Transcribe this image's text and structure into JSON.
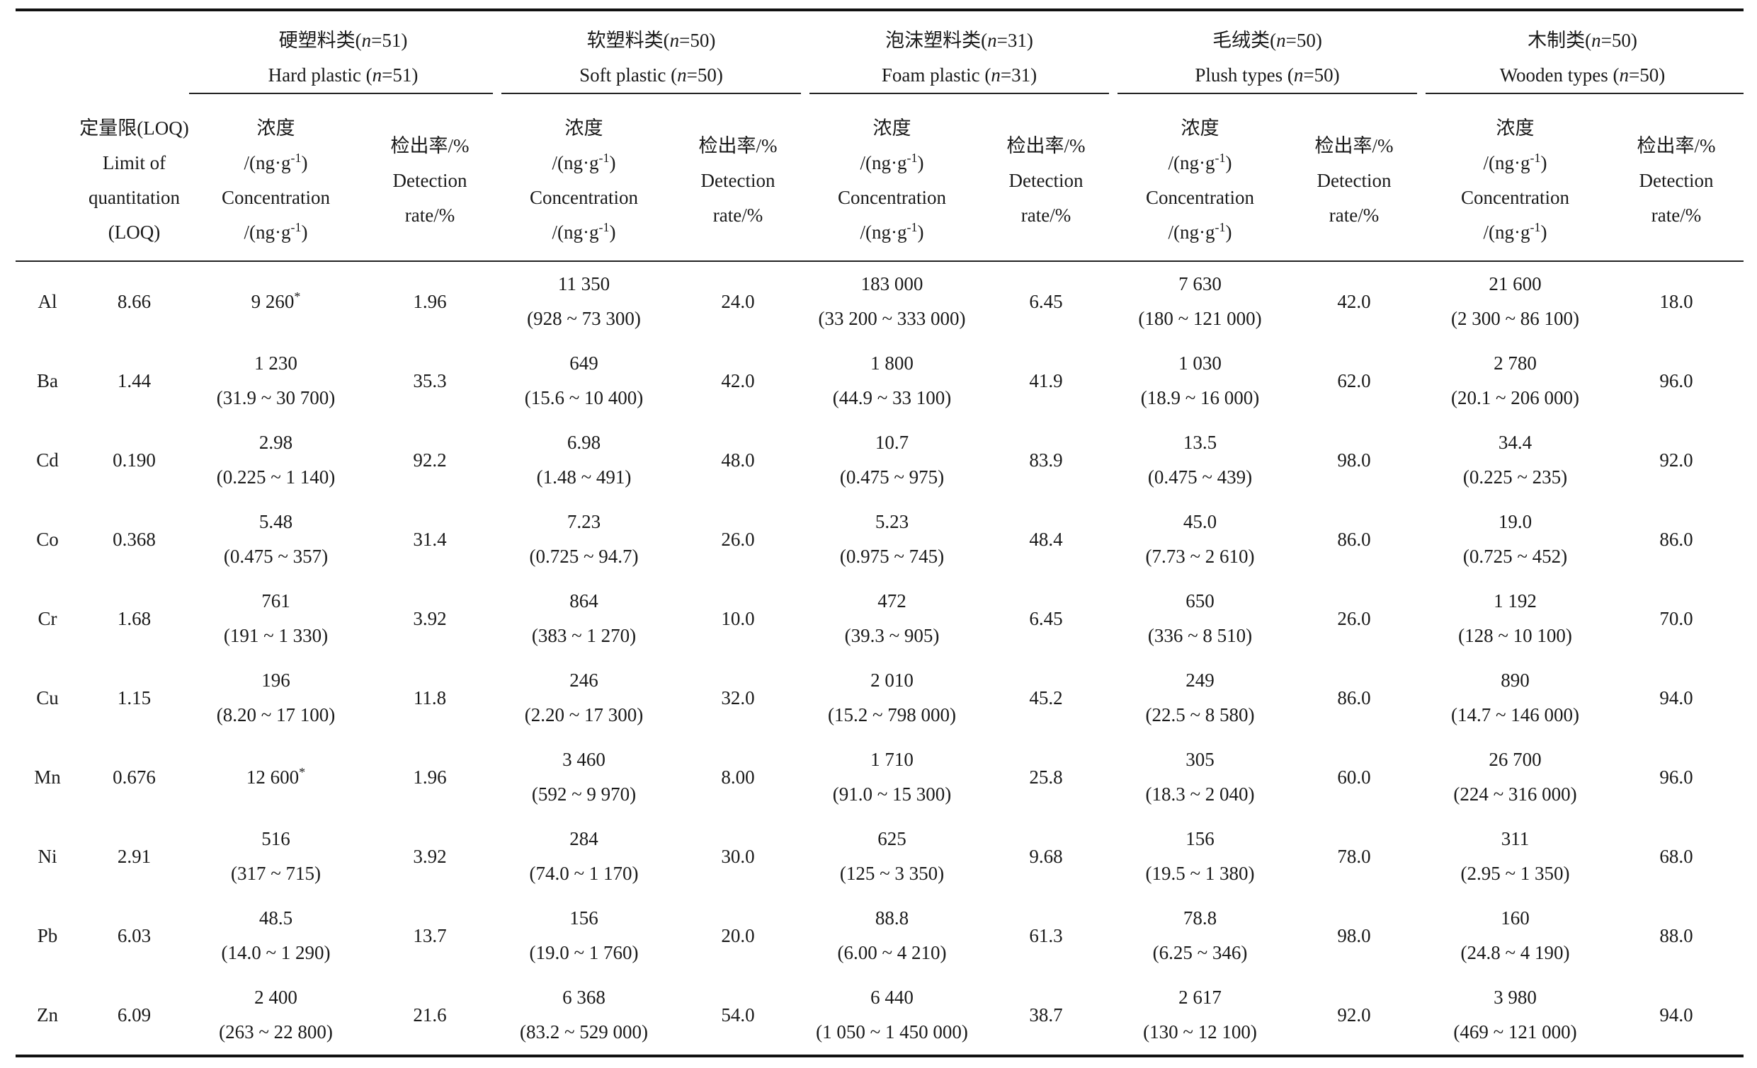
{
  "header": {
    "loq_cn": "定量限(LOQ)",
    "loq_en1": "Limit of",
    "loq_en2": "quantitation",
    "loq_en3": "(LOQ)",
    "conc_cn": "浓度",
    "conc_unit": "/(ng·g",
    "conc_unit_sup": "-1",
    "conc_unit_end": ")",
    "conc_en": "Concentration",
    "rate_cn": "检出率/%",
    "rate_en1": "Detection",
    "rate_en2": "rate/%"
  },
  "groups": [
    {
      "cn": "硬塑料类(",
      "en": "Hard plastic (",
      "n": "51"
    },
    {
      "cn": "软塑料类(",
      "en": "Soft plastic (",
      "n": "50"
    },
    {
      "cn": "泡沫塑料类(",
      "en": "Foam plastic (",
      "n": "31"
    },
    {
      "cn": "毛绒类(",
      "en": "Plush types (",
      "n": "50"
    },
    {
      "cn": "木制类(",
      "en": "Wooden types (",
      "n": "50"
    }
  ],
  "rows": [
    {
      "el": "Al",
      "loq": "8.66",
      "c": [
        {
          "v": "9 260",
          "r": "",
          "star": "*"
        },
        {
          "v": "11 350",
          "r": "(928 ~ 73 300)"
        },
        {
          "v": "183 000",
          "r": "(33 200 ~ 333 000)"
        },
        {
          "v": "7 630",
          "r": "(180 ~ 121 000)"
        },
        {
          "v": "21 600",
          "r": "(2 300 ~ 86 100)"
        }
      ],
      "d": [
        "1.96",
        "24.0",
        "6.45",
        "42.0",
        "18.0"
      ]
    },
    {
      "el": "Ba",
      "loq": "1.44",
      "c": [
        {
          "v": "1 230",
          "r": "(31.9 ~ 30 700)"
        },
        {
          "v": "649",
          "r": "(15.6 ~ 10 400)"
        },
        {
          "v": "1 800",
          "r": "(44.9 ~ 33 100)"
        },
        {
          "v": "1 030",
          "r": "(18.9 ~ 16 000)"
        },
        {
          "v": "2 780",
          "r": "(20.1 ~ 206 000)"
        }
      ],
      "d": [
        "35.3",
        "42.0",
        "41.9",
        "62.0",
        "96.0"
      ]
    },
    {
      "el": "Cd",
      "loq": "0.190",
      "c": [
        {
          "v": "2.98",
          "r": "(0.225 ~ 1 140)"
        },
        {
          "v": "6.98",
          "r": "(1.48 ~ 491)"
        },
        {
          "v": "10.7",
          "r": "(0.475 ~ 975)"
        },
        {
          "v": "13.5",
          "r": "(0.475 ~ 439)"
        },
        {
          "v": "34.4",
          "r": "(0.225 ~ 235)"
        }
      ],
      "d": [
        "92.2",
        "48.0",
        "83.9",
        "98.0",
        "92.0"
      ]
    },
    {
      "el": "Co",
      "loq": "0.368",
      "c": [
        {
          "v": "5.48",
          "r": "(0.475 ~ 357)"
        },
        {
          "v": "7.23",
          "r": "(0.725 ~ 94.7)"
        },
        {
          "v": "5.23",
          "r": "(0.975 ~ 745)"
        },
        {
          "v": "45.0",
          "r": "(7.73 ~ 2 610)"
        },
        {
          "v": "19.0",
          "r": "(0.725 ~ 452)"
        }
      ],
      "d": [
        "31.4",
        "26.0",
        "48.4",
        "86.0",
        "86.0"
      ]
    },
    {
      "el": "Cr",
      "loq": "1.68",
      "c": [
        {
          "v": "761",
          "r": "(191 ~ 1 330)"
        },
        {
          "v": "864",
          "r": "(383 ~ 1 270)"
        },
        {
          "v": "472",
          "r": "(39.3 ~ 905)"
        },
        {
          "v": "650",
          "r": "(336 ~ 8 510)"
        },
        {
          "v": "1 192",
          "r": "(128 ~ 10 100)"
        }
      ],
      "d": [
        "3.92",
        "10.0",
        "6.45",
        "26.0",
        "70.0"
      ]
    },
    {
      "el": "Cu",
      "loq": "1.15",
      "c": [
        {
          "v": "196",
          "r": "(8.20 ~ 17 100)"
        },
        {
          "v": "246",
          "r": "(2.20 ~ 17 300)"
        },
        {
          "v": "2 010",
          "r": "(15.2 ~ 798 000)"
        },
        {
          "v": "249",
          "r": "(22.5 ~ 8 580)"
        },
        {
          "v": "890",
          "r": "(14.7 ~ 146 000)"
        }
      ],
      "d": [
        "11.8",
        "32.0",
        "45.2",
        "86.0",
        "94.0"
      ]
    },
    {
      "el": "Mn",
      "loq": "0.676",
      "c": [
        {
          "v": "12 600",
          "r": "",
          "star": "*"
        },
        {
          "v": "3 460",
          "r": "(592 ~ 9 970)"
        },
        {
          "v": "1 710",
          "r": "(91.0 ~ 15 300)"
        },
        {
          "v": "305",
          "r": "(18.3 ~ 2 040)"
        },
        {
          "v": "26 700",
          "r": "(224 ~ 316 000)"
        }
      ],
      "d": [
        "1.96",
        "8.00",
        "25.8",
        "60.0",
        "96.0"
      ]
    },
    {
      "el": "Ni",
      "loq": "2.91",
      "c": [
        {
          "v": "516",
          "r": "(317 ~ 715)"
        },
        {
          "v": "284",
          "r": "(74.0 ~ 1 170)"
        },
        {
          "v": "625",
          "r": "(125 ~ 3 350)"
        },
        {
          "v": "156",
          "r": "(19.5 ~ 1 380)"
        },
        {
          "v": "311",
          "r": "(2.95 ~ 1 350)"
        }
      ],
      "d": [
        "3.92",
        "30.0",
        "9.68",
        "78.0",
        "68.0"
      ]
    },
    {
      "el": "Pb",
      "loq": "6.03",
      "c": [
        {
          "v": "48.5",
          "r": "(14.0 ~ 1 290)"
        },
        {
          "v": "156",
          "r": "(19.0 ~ 1 760)"
        },
        {
          "v": "88.8",
          "r": "(6.00 ~ 4 210)"
        },
        {
          "v": "78.8",
          "r": "(6.25 ~ 346)"
        },
        {
          "v": "160",
          "r": "(24.8 ~ 4 190)"
        }
      ],
      "d": [
        "13.7",
        "20.0",
        "61.3",
        "98.0",
        "88.0"
      ]
    },
    {
      "el": "Zn",
      "loq": "6.09",
      "c": [
        {
          "v": "2 400",
          "r": "(263 ~ 22 800)"
        },
        {
          "v": "6 368",
          "r": "(83.2 ~ 529 000)"
        },
        {
          "v": "6 440",
          "r": "(1 050 ~ 1 450 000)"
        },
        {
          "v": "2 617",
          "r": "(130 ~ 12 100)"
        },
        {
          "v": "3 980",
          "r": "(469 ~ 121 000)"
        }
      ],
      "d": [
        "21.6",
        "54.0",
        "38.7",
        "92.0",
        "94.0"
      ]
    }
  ]
}
